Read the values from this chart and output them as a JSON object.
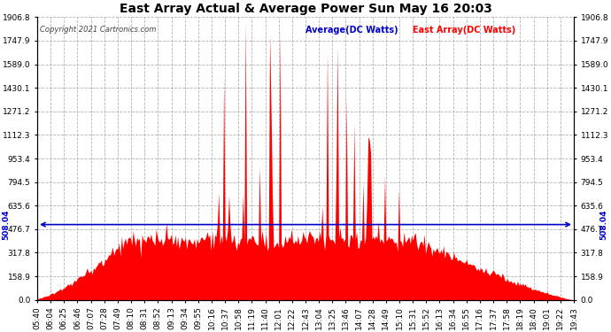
{
  "title": "East Array Actual & Average Power Sun May 16 20:03",
  "copyright": "Copyright 2021 Cartronics.com",
  "legend_avg": "Average(DC Watts)",
  "legend_east": "East Array(DC Watts)",
  "avg_value": 508.04,
  "y_max": 1906.8,
  "y_ticks": [
    0.0,
    158.9,
    317.8,
    476.7,
    635.6,
    794.5,
    953.4,
    1112.3,
    1271.2,
    1430.1,
    1589.0,
    1747.9,
    1906.8
  ],
  "x_tick_labels": [
    "05:40",
    "06:04",
    "06:25",
    "06:46",
    "07:07",
    "07:28",
    "07:49",
    "08:10",
    "08:31",
    "08:52",
    "09:13",
    "09:34",
    "09:55",
    "10:16",
    "10:37",
    "10:58",
    "11:19",
    "11:40",
    "12:01",
    "12:22",
    "12:43",
    "13:04",
    "13:25",
    "13:46",
    "14:07",
    "14:28",
    "14:49",
    "15:10",
    "15:31",
    "15:52",
    "16:13",
    "16:34",
    "16:55",
    "17:16",
    "17:37",
    "17:58",
    "18:19",
    "18:40",
    "19:01",
    "19:22",
    "19:43"
  ],
  "bg_color": "#ffffff",
  "fill_color": "#ff0000",
  "line_color": "#0000cd",
  "grid_color": "#aaaaaa",
  "title_color": "#000000",
  "copyright_color": "#000000",
  "legend_avg_color": "#0000cd",
  "legend_east_color": "#ff0000"
}
